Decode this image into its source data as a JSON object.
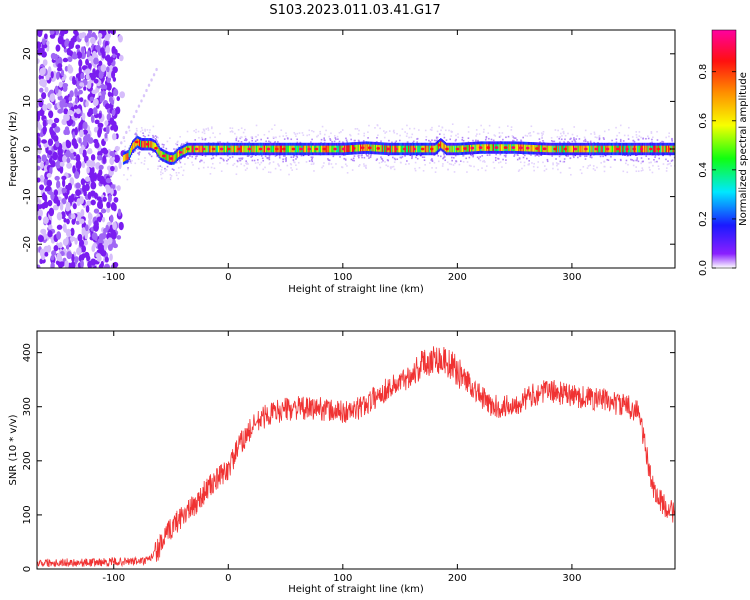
{
  "title": "S103.2023.011.03.41.G17",
  "chart_data": [
    {
      "type": "heatmap",
      "xlabel": "Height of straight line (km)",
      "ylabel": "Frequency (Hz)",
      "xlim": [
        -167,
        390
      ],
      "ylim": [
        -25,
        25
      ],
      "xticks": [
        -100,
        0,
        100,
        200,
        300
      ],
      "yticks": [
        -20,
        -10,
        0,
        10,
        20
      ],
      "colorbar": {
        "label": "Normalized spectral amplitude",
        "range": [
          0,
          0.97
        ],
        "ticks": [
          0.0,
          0.2,
          0.4,
          0.6,
          0.8
        ]
      },
      "ridge": {
        "x": [
          -92,
          -88,
          -84,
          -80,
          -76,
          -72,
          -68,
          -64,
          -60,
          -56,
          -52,
          -48,
          -44,
          -40,
          -36,
          -30,
          -20,
          0,
          50,
          100,
          120,
          140,
          160,
          180,
          185,
          190,
          200,
          220,
          250,
          280,
          320,
          390
        ],
        "y": [
          -2,
          -1.5,
          0.5,
          1.5,
          1.0,
          1.0,
          1.0,
          0.5,
          -1.0,
          -1.5,
          -2.0,
          -2.0,
          -1.0,
          -0.5,
          0,
          0,
          0,
          0,
          0,
          0,
          0.3,
          0,
          0,
          0,
          1.0,
          0,
          0,
          0.3,
          0.3,
          0,
          0,
          0
        ]
      },
      "noise_region_x": [
        -167,
        -90
      ]
    },
    {
      "type": "line",
      "xlabel": "Height of straight line (km)",
      "ylabel": "SNR (10 * v/v)",
      "xlim": [
        -167,
        390
      ],
      "ylim": [
        0,
        440
      ],
      "xticks": [
        -100,
        0,
        100,
        200,
        300
      ],
      "yticks": [
        0,
        100,
        200,
        300,
        400
      ],
      "color": "#f03232",
      "series": [
        {
          "x": [
            -167,
            -120,
            -70,
            -60,
            -50,
            -40,
            -30,
            -20,
            -10,
            0,
            10,
            20,
            30,
            40,
            50,
            60,
            70,
            80,
            90,
            100,
            110,
            120,
            130,
            140,
            150,
            160,
            170,
            180,
            190,
            200,
            210,
            220,
            230,
            240,
            250,
            260,
            270,
            280,
            290,
            300,
            310,
            320,
            330,
            340,
            350,
            358,
            362,
            366,
            370,
            375,
            380,
            385,
            390
          ],
          "y": [
            12,
            12,
            15,
            40,
            75,
            100,
            115,
            145,
            165,
            185,
            230,
            260,
            280,
            290,
            295,
            298,
            295,
            298,
            292,
            290,
            292,
            305,
            320,
            335,
            345,
            360,
            380,
            390,
            385,
            365,
            345,
            320,
            300,
            300,
            305,
            315,
            325,
            330,
            325,
            320,
            318,
            315,
            312,
            305,
            300,
            292,
            250,
            200,
            160,
            130,
            120,
            110,
            105
          ]
        }
      ],
      "noise_amplitude": 22
    }
  ]
}
